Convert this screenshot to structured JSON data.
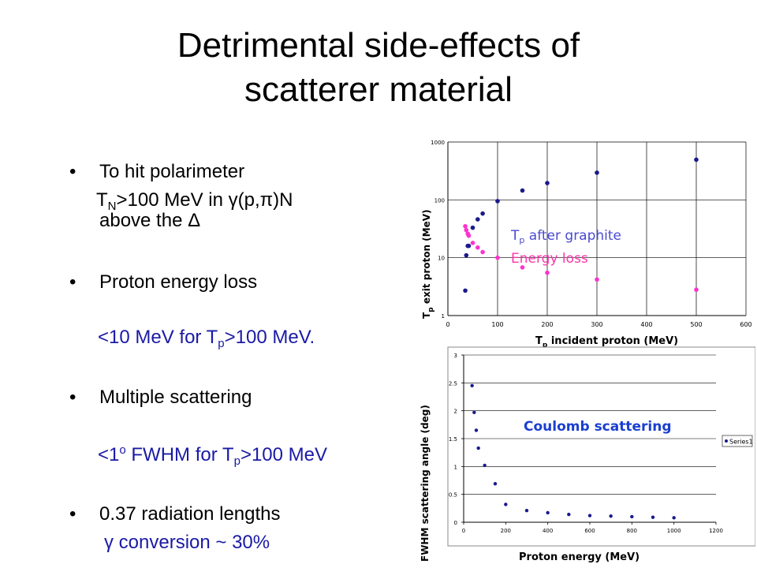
{
  "slide": {
    "title_line1": "Detrimental side-effects of",
    "title_line2": "scatterer material"
  },
  "bullets": {
    "b1_text": "To hit polarimeter",
    "b1_sub_a": "T",
    "b1_sub_a_index": "N",
    "b1_sub_b": ">100 MeV in γ(p,π)N",
    "b1_sub_c": "above the Δ",
    "b2_text": "Proton energy loss",
    "b2_sub_a": "<10 MeV for T",
    "b2_sub_a_index": "p",
    "b2_sub_b": ">100 MeV.",
    "b3_text": "Multiple scattering",
    "b3_sub_a": "<1",
    "b3_sub_a_sup": "o",
    "b3_sub_b": " FWHM for T",
    "b3_sub_b_index": "p",
    "b3_sub_c": ">100 MeV",
    "b4_text": "0.37 radiation lengths",
    "b4_sub": "γ conversion ~ 30%"
  },
  "colors": {
    "blue_series": "#1a1a8c",
    "magenta_series": "#ff33cc",
    "annotation_blue": "#4a4ad0",
    "annotation_magenta": "#ff33aa",
    "coulomb_label": "#1a3fd0"
  },
  "chart_data": [
    {
      "type": "scatter",
      "scale": "log-y",
      "xlabel_main": "T",
      "xlabel_index": "p",
      "xlabel_rest": " incident proton (MeV)",
      "ylabel_main": "T",
      "ylabel_index": "p",
      "ylabel_rest": " exit proton (MeV)",
      "xlim": [
        0,
        600
      ],
      "ylim": [
        1,
        1000
      ],
      "xticks": [
        0,
        100,
        200,
        300,
        400,
        500,
        600
      ],
      "yticks": [
        1,
        10,
        100,
        1000
      ],
      "ytick_labels": [
        "1",
        "10",
        "100",
        "1000"
      ],
      "grid": true,
      "annotations": [
        {
          "main": "T",
          "index": "p",
          "rest": " after graphite",
          "color_key": "annotation_blue"
        },
        {
          "main": "Energy loss",
          "index": "",
          "rest": "",
          "color_key": "annotation_magenta"
        }
      ],
      "series": [
        {
          "color_key": "blue_series",
          "x": [
            35,
            37,
            40,
            42,
            50,
            60,
            70,
            100,
            150,
            200,
            300,
            500
          ],
          "y": [
            2.7,
            11,
            16,
            16,
            33,
            46,
            58,
            95,
            145,
            195,
            295,
            495
          ]
        },
        {
          "color_key": "magenta_series",
          "x": [
            35,
            37,
            40,
            42,
            50,
            60,
            70,
            100,
            150,
            200,
            300,
            500
          ],
          "y": [
            35,
            30,
            26,
            24,
            18,
            15,
            12.5,
            10,
            6.8,
            5.5,
            4.2,
            2.8
          ]
        }
      ]
    },
    {
      "type": "scatter",
      "xlabel": "Proton energy (MeV)",
      "ylabel": "FWHM scattering angle (deg)",
      "xlim": [
        0,
        1200
      ],
      "ylim": [
        0,
        3
      ],
      "xticks": [
        0,
        200,
        400,
        600,
        800,
        1000,
        1200
      ],
      "yticks": [
        0,
        0.5,
        1,
        1.5,
        2,
        2.5,
        3
      ],
      "grid": true,
      "annotation": "Coulomb scattering",
      "legend": {
        "label": "Series1",
        "position": "right"
      },
      "series": [
        {
          "name": "Series1",
          "color_key": "blue_series",
          "x": [
            40,
            50,
            60,
            70,
            100,
            150,
            200,
            300,
            400,
            500,
            600,
            700,
            800,
            900,
            1000
          ],
          "y": [
            2.45,
            1.97,
            1.65,
            1.33,
            1.02,
            0.69,
            0.32,
            0.21,
            0.17,
            0.14,
            0.12,
            0.11,
            0.1,
            0.09,
            0.08
          ]
        }
      ]
    }
  ]
}
